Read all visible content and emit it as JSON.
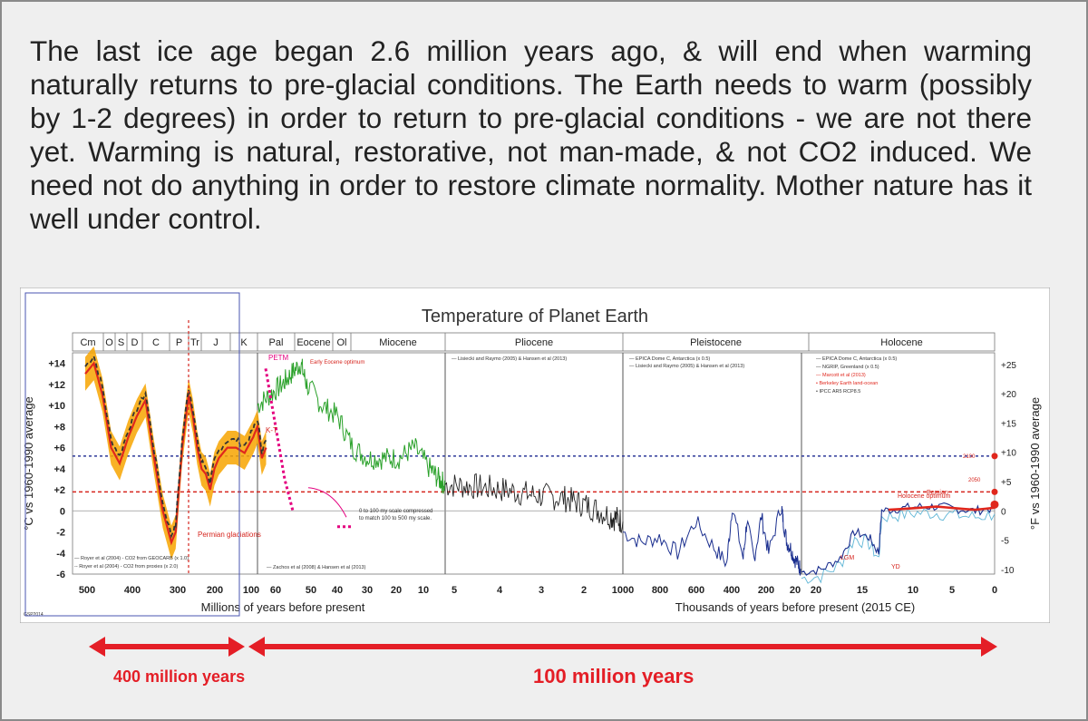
{
  "headline": "The last ice age began 2.6 million years ago, & will end when warming naturally returns to pre-glacial conditions. The Earth needs to warm (possibly by 1-2 degrees) in order to return to pre-glacial conditions - we are not there yet. Warming is natural, restorative, not man-made, & not CO2 induced. We need not do anything in order to restore climate normality. Mother nature has it well under control.",
  "colors": {
    "background": "#efefef",
    "text": "#222222",
    "accent_red": "#e41e26",
    "series_red": "#e0271d",
    "series_orange": "#f7a500",
    "series_green": "#2aa12a",
    "series_black": "#222222",
    "series_blue": "#1b2f8f",
    "series_lightblue": "#5fb6d6",
    "dotted_blue": "#2f3a9a",
    "dotted_red": "#d6251e",
    "magenta": "#e4007f"
  },
  "captions": {
    "left_span": "400 million years",
    "right_span": "100 million years"
  },
  "chart_data": {
    "type": "line",
    "title": "Temperature of Planet Earth",
    "ylabel_left": "°C vs 1960-1990 average",
    "ylabel_right": "°F vs 1960-1990 average",
    "ylim_c": [
      -6,
      15
    ],
    "yticks_left": [
      "+14",
      "+12",
      "+10",
      "+8",
      "+6",
      "+4",
      "+2",
      "0",
      "-2",
      "-4",
      "-6"
    ],
    "yticks_right": [
      "+25",
      "+20",
      "+15",
      "+10",
      "+5",
      "0",
      "-5",
      "-10"
    ],
    "yticks_right_values_f": [
      25,
      20,
      15,
      10,
      5,
      0,
      -5,
      -10
    ],
    "eras": [
      {
        "label": "Cm",
        "from": 500,
        "to": 480
      },
      {
        "label": "O",
        "from": 480,
        "to": 445
      },
      {
        "label": "S",
        "from": 445,
        "to": 420
      },
      {
        "label": "D",
        "from": 420,
        "to": 360
      },
      {
        "label": "C",
        "from": 360,
        "to": 300
      },
      {
        "label": "P",
        "from": 300,
        "to": 252
      },
      {
        "label": "Tr",
        "from": 252,
        "to": 200
      },
      {
        "label": "J",
        "from": 200,
        "to": 145
      },
      {
        "label": "K",
        "from": 145,
        "to": 66
      },
      {
        "label": "Pal",
        "from": 66,
        "to": 56
      },
      {
        "label": "Eocene",
        "from": 56,
        "to": 34
      },
      {
        "label": "Ol",
        "from": 34,
        "to": 23
      },
      {
        "label": "Miocene",
        "from": 23,
        "to": 5
      },
      {
        "label": "Pliocene",
        "from": 5,
        "to": 2.6
      },
      {
        "label": "Pleistocene",
        "from": 2600,
        "to": 11.7
      },
      {
        "label": "Holocene",
        "from": 11.7,
        "to": 0
      }
    ],
    "panels": [
      {
        "unit": "Millions of years before present",
        "ticks": [
          "500",
          "400",
          "300",
          "200",
          "100",
          "60",
          "50",
          "40",
          "30",
          "20",
          "10"
        ]
      },
      {
        "unit": "Millions of years before present",
        "ticks": [
          "5",
          "4",
          "3",
          "2"
        ]
      },
      {
        "unit": "Thousands of years before present (2015 CE)",
        "ticks": [
          "1000",
          "800",
          "600",
          "400",
          "200",
          "20"
        ]
      },
      {
        "unit": "Thousands of years before present (2015 CE)",
        "ticks": [
          "20",
          "15",
          "10",
          "5",
          "0"
        ]
      }
    ],
    "xlabel_left": "Millions of years before present",
    "xlabel_right": "Thousands of years before present (2015 CE)",
    "reference_lines_c": [
      {
        "name": "dotted_blue",
        "value": 5.2
      },
      {
        "name": "dotted_red",
        "value": 1.8
      }
    ],
    "series": [
      {
        "segment": "paleozoic",
        "x_myr": [
          500,
          480,
          460,
          440,
          420,
          400,
          380,
          360,
          340,
          320,
          300,
          290,
          275,
          260,
          250,
          240,
          230,
          220,
          210,
          200,
          190,
          170,
          150,
          130,
          110,
          100,
          90,
          80
        ],
        "y_c": [
          13,
          14,
          11,
          6,
          4.5,
          7,
          9,
          10.5,
          5,
          0,
          -3,
          -2,
          6,
          11,
          9,
          6,
          4,
          3.5,
          2,
          4,
          5,
          6,
          6,
          5.5,
          7,
          8,
          5,
          6
        ]
      },
      {
        "segment": "cenozoic",
        "x_myr": [
          66,
          62,
          58,
          55,
          52,
          50,
          45,
          40,
          35,
          30,
          25,
          20,
          15,
          10,
          7,
          5
        ],
        "y_c": [
          10,
          11,
          12,
          13,
          14,
          12,
          10,
          9,
          6,
          5,
          5,
          5,
          6,
          4,
          3,
          2.5
        ]
      },
      {
        "segment": "pliocene",
        "x_myr": [
          5,
          4.5,
          4,
          3.5,
          3,
          2.6,
          2.2,
          2
        ],
        "y_c": [
          2.5,
          2.3,
          2,
          1.5,
          1.2,
          0.5,
          -0.5,
          -1
        ]
      },
      {
        "segment": "pleistocene",
        "x_kyr": [
          1000,
          900,
          800,
          700,
          600,
          500,
          430,
          400,
          340,
          320,
          280,
          240,
          200,
          130,
          120,
          100,
          80,
          60,
          40,
          25
        ],
        "y_c": [
          -2,
          -3,
          -2.5,
          -4,
          -1,
          -3.5,
          -5,
          0.5,
          -4.5,
          -1,
          -4.5,
          -0.5,
          -4,
          0.5,
          -1,
          -3,
          -3.5,
          -4.5,
          -5,
          -5.5
        ]
      },
      {
        "segment": "lgm-holocene",
        "x_kyr": [
          20,
          18,
          16,
          14.5,
          13,
          12,
          11.7,
          10,
          8,
          6,
          4,
          2,
          0
        ],
        "y_c": [
          -5.8,
          -5.6,
          -4.5,
          -2,
          -2.5,
          -4,
          0,
          0.2,
          0.4,
          0.4,
          0.2,
          0,
          0.3
        ]
      }
    ],
    "legend_top_left": "Lisiecki and Raymo (2005) & Hansen et al (2013)",
    "legend_pleistocene": [
      "EPICA Dome C, Antarctica (x 0.5)",
      "Lisiecki and Raymo (2005) & Hansen et al (2013)"
    ],
    "legend_holocene": [
      "EPICA Dome C, Antarctica (x 0.5)",
      "NGRIP, Greenland (x 0.5)",
      "Marcott et al (2013)",
      "Berkeley Earth land-ocean",
      "IPCC AR5 RCP8.5"
    ],
    "legend_bottom_left": [
      "Royer et al (2004) - CO2 from GEOCARB (x 1.0)",
      "Royer et al (2004) - CO2 from proxies (x 2.0)"
    ],
    "legend_cenozoic": "Zachos et al (2008) & Hansen et al (2013)",
    "annotations": [
      "PETM",
      "Early Eocene optimum",
      "K-T",
      "Permian glaciations",
      "0 to 100 my scale compressed to match 100 to 500 my scale.",
      "Eemian",
      "LGM",
      "YD",
      "Holocene optimum",
      "2100",
      "2050"
    ],
    "credit": "GSP2014"
  }
}
